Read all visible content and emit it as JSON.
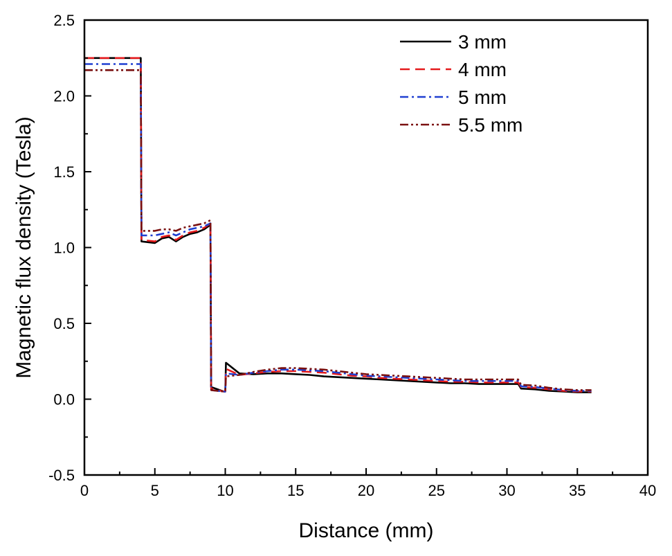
{
  "chart_data": {
    "type": "line",
    "xlabel": "Distance (mm)",
    "ylabel": "Magnetic flux density (Tesla)",
    "xlim": [
      0,
      40
    ],
    "ylim": [
      -0.5,
      2.5
    ],
    "xticks": [
      0,
      5,
      10,
      15,
      20,
      25,
      30,
      35,
      40
    ],
    "yticks": [
      -0.5,
      0.0,
      0.5,
      1.0,
      1.5,
      2.0,
      2.5
    ],
    "xtick_labels": [
      "0",
      "5",
      "10",
      "15",
      "20",
      "25",
      "30",
      "35",
      "40"
    ],
    "ytick_labels": [
      "-0.5",
      "0.0",
      "0.5",
      "1.0",
      "1.5",
      "2.0",
      "2.5"
    ],
    "grid": false,
    "legend_position": "top-right",
    "series": [
      {
        "name": "3 mm",
        "color": "#000000",
        "dash": "solid",
        "x": [
          0,
          4.0,
          4.05,
          5.0,
          5.5,
          6.0,
          6.5,
          7.0,
          7.5,
          8.0,
          8.5,
          8.95,
          9.0,
          9.9,
          10.0,
          10.05,
          11.0,
          12,
          13,
          14,
          15,
          16,
          17,
          18,
          19,
          20,
          21,
          22,
          23,
          24,
          25,
          26,
          27,
          28,
          29,
          30,
          30.8,
          31.0,
          32,
          33,
          34,
          35,
          36
        ],
        "y": [
          2.25,
          2.25,
          1.04,
          1.03,
          1.06,
          1.07,
          1.04,
          1.07,
          1.09,
          1.1,
          1.12,
          1.15,
          0.08,
          0.05,
          0.05,
          0.24,
          0.17,
          0.165,
          0.17,
          0.17,
          0.165,
          0.16,
          0.15,
          0.145,
          0.14,
          0.135,
          0.13,
          0.125,
          0.12,
          0.115,
          0.11,
          0.105,
          0.105,
          0.1,
          0.1,
          0.1,
          0.1,
          0.07,
          0.065,
          0.055,
          0.05,
          0.045,
          0.045
        ]
      },
      {
        "name": "4 mm",
        "color": "#e41a1c",
        "dash": "dashed",
        "x": [
          0,
          4.0,
          4.05,
          5.0,
          5.5,
          6.0,
          6.5,
          7.0,
          7.5,
          8.0,
          8.5,
          8.95,
          9.0,
          9.9,
          10.0,
          10.05,
          11.0,
          12,
          13,
          14,
          15,
          16,
          17,
          18,
          19,
          20,
          21,
          22,
          23,
          24,
          25,
          26,
          27,
          28,
          29,
          30,
          30.8,
          31.0,
          32,
          33,
          34,
          35,
          36
        ],
        "y": [
          2.25,
          2.25,
          1.05,
          1.04,
          1.07,
          1.08,
          1.05,
          1.08,
          1.1,
          1.11,
          1.13,
          1.16,
          0.07,
          0.05,
          0.05,
          0.2,
          0.16,
          0.17,
          0.18,
          0.185,
          0.185,
          0.18,
          0.175,
          0.165,
          0.155,
          0.15,
          0.14,
          0.135,
          0.13,
          0.125,
          0.12,
          0.115,
          0.115,
          0.11,
          0.11,
          0.11,
          0.11,
          0.08,
          0.075,
          0.065,
          0.055,
          0.05,
          0.05
        ]
      },
      {
        "name": "5 mm",
        "color": "#1f3fd1",
        "dash": "dashdot",
        "x": [
          0,
          4.0,
          4.05,
          5.0,
          5.5,
          6.0,
          6.5,
          7.0,
          7.5,
          8.0,
          8.5,
          8.95,
          9.0,
          9.9,
          10.0,
          10.05,
          11.0,
          12,
          13,
          14,
          15,
          16,
          17,
          18,
          19,
          20,
          21,
          22,
          23,
          24,
          25,
          26,
          27,
          28,
          29,
          30,
          30.8,
          31.0,
          32,
          33,
          34,
          35,
          36
        ],
        "y": [
          2.21,
          2.21,
          1.08,
          1.08,
          1.09,
          1.1,
          1.08,
          1.1,
          1.12,
          1.13,
          1.14,
          1.16,
          0.06,
          0.05,
          0.05,
          0.17,
          0.16,
          0.175,
          0.185,
          0.195,
          0.195,
          0.19,
          0.185,
          0.175,
          0.165,
          0.155,
          0.15,
          0.145,
          0.14,
          0.135,
          0.13,
          0.125,
          0.12,
          0.12,
          0.12,
          0.12,
          0.12,
          0.085,
          0.08,
          0.07,
          0.06,
          0.055,
          0.055
        ]
      },
      {
        "name": "5.5 mm",
        "color": "#7a1010",
        "dash": "dashdotdot",
        "x": [
          0,
          4.0,
          4.05,
          5.0,
          5.5,
          6.0,
          6.5,
          7.0,
          7.5,
          8.0,
          8.5,
          8.95,
          9.0,
          9.9,
          10.0,
          10.05,
          11.0,
          12,
          13,
          14,
          15,
          16,
          17,
          18,
          19,
          20,
          21,
          22,
          23,
          24,
          25,
          26,
          27,
          28,
          29,
          30,
          30.8,
          31.0,
          32,
          33,
          34,
          35,
          36
        ],
        "y": [
          2.17,
          2.17,
          1.11,
          1.11,
          1.12,
          1.12,
          1.11,
          1.13,
          1.14,
          1.15,
          1.16,
          1.18,
          0.06,
          0.05,
          0.05,
          0.15,
          0.16,
          0.18,
          0.195,
          0.205,
          0.205,
          0.2,
          0.195,
          0.185,
          0.175,
          0.165,
          0.16,
          0.155,
          0.15,
          0.145,
          0.14,
          0.135,
          0.13,
          0.13,
          0.13,
          0.13,
          0.13,
          0.095,
          0.09,
          0.075,
          0.065,
          0.06,
          0.06
        ]
      }
    ]
  }
}
